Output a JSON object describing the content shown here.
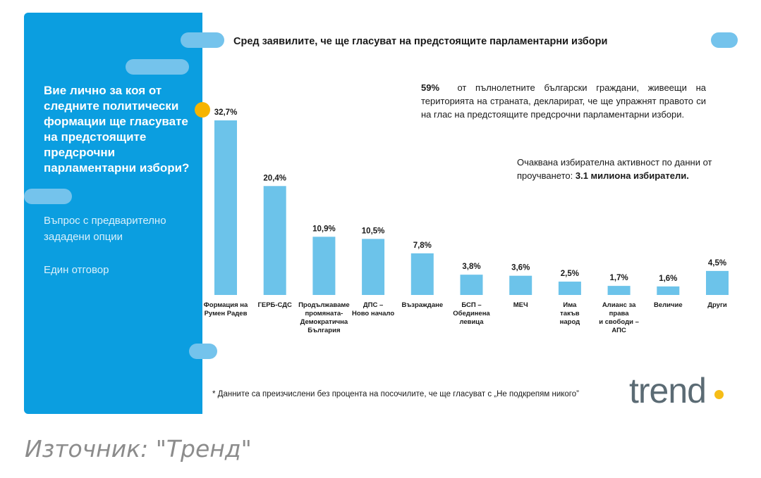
{
  "panel": {
    "question": "Вие лично за коя от следните политически формации ще гласувате на предстоящите предсрочни парламентарни избори?",
    "meta1": "Въпрос с предварително зададени опции",
    "meta2": "Един отговор"
  },
  "title": "Сред заявилите, че ще гласуват на предстоящите парламентарни избори",
  "note_turnout_pct": "59%",
  "note_turnout_text": "от пълнолетните български граждани, живеещи на територията на страната, декларират, че ще упражнят правото си на глас на предстоящите предсрочни парламентарни избори.",
  "note_activity_text": "Очаквана избирателна активност по данни от проучването:",
  "note_activity_value": "3.1 милиона избиратели.",
  "footnote": "* Данните са преизчислени без процента на посочилите, че ще гласуват с „Не подкрепям никого”",
  "logo": "trend",
  "source": "Източник: \"Тренд\"",
  "colors": {
    "panel": "#0b9ee0",
    "bar": "#6cc3ea",
    "accent": "#f6b400"
  },
  "chart_data": {
    "type": "bar",
    "categories": [
      [
        "Формация на",
        "Румен Радев"
      ],
      [
        "ГЕРБ-СДС"
      ],
      [
        "Продължаваме",
        "промяната-",
        "Демократична",
        "България"
      ],
      [
        "ДПС –",
        "Ново начало"
      ],
      [
        "Възраждане"
      ],
      [
        "БСП –",
        "Обединена",
        "левица"
      ],
      [
        "МЕЧ"
      ],
      [
        "Има",
        "такъв",
        "народ"
      ],
      [
        "Алианс за",
        "права",
        "и свободи –",
        "АПС"
      ],
      [
        "Величие"
      ],
      [
        "Други"
      ]
    ],
    "values": [
      32.7,
      20.4,
      10.9,
      10.5,
      7.8,
      3.8,
      3.6,
      2.5,
      1.7,
      1.6,
      4.5
    ],
    "labels": [
      "32,7%",
      "20,4%",
      "10,9%",
      "10,5%",
      "7,8%",
      "3,8%",
      "3,6%",
      "2,5%",
      "1,7%",
      "1,6%",
      "4,5%"
    ],
    "ylim": [
      0,
      35
    ],
    "grid": false
  }
}
